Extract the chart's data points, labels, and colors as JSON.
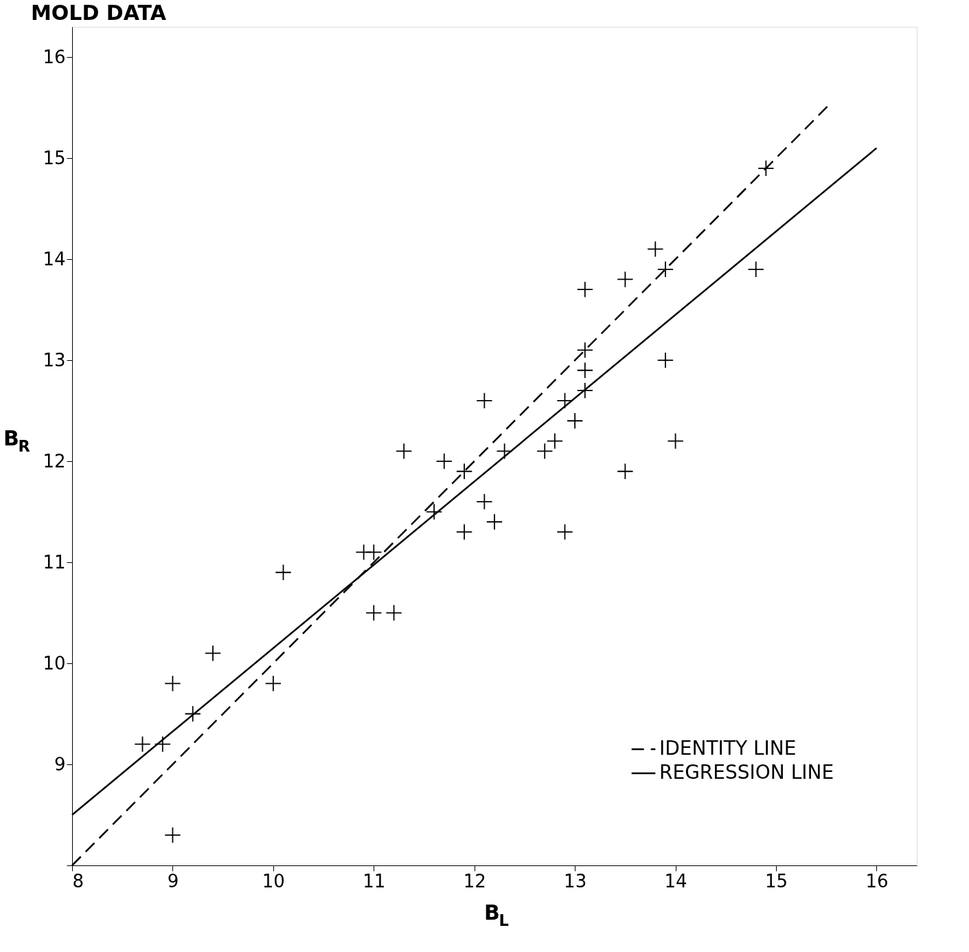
{
  "chart_data": {
    "type": "scatter",
    "title": "MOLD DATA",
    "xlabel": "B$_{L}$",
    "ylabel": "B$_{R}$",
    "xlim": [
      8,
      16.4
    ],
    "ylim": [
      8,
      16.3
    ],
    "xticks": [
      8,
      9,
      10,
      11,
      12,
      13,
      14,
      15,
      16
    ],
    "yticks": [
      {
        "value": 8,
        "label": null
      },
      9,
      10,
      11,
      12,
      13,
      14,
      15,
      16
    ],
    "grid": false,
    "legend": "bottom right",
    "series": [
      {
        "marker": "cross",
        "color": "#000000",
        "x": [
          14.9,
          13.8,
          13.9,
          14.8,
          13.5,
          13.1,
          13.1,
          13.1,
          13.9,
          13.1,
          12.9,
          12.1,
          13.0,
          12.8,
          14.0,
          12.7,
          12.3,
          11.3,
          11.7,
          11.9,
          13.5,
          12.1,
          11.6,
          12.2,
          11.9,
          12.9,
          10.9,
          11.0,
          10.1,
          11.0,
          11.2,
          9.4,
          9.0,
          10.0,
          9.2,
          8.7,
          8.9,
          9.0
        ],
        "values": [
          14.9,
          14.1,
          13.9,
          13.9,
          13.8,
          13.7,
          13.1,
          12.9,
          13.0,
          12.7,
          12.6,
          12.6,
          12.4,
          12.2,
          12.2,
          12.1,
          12.1,
          12.1,
          12.0,
          11.9,
          11.9,
          11.6,
          11.5,
          11.4,
          11.3,
          11.3,
          11.1,
          11.1,
          10.9,
          10.5,
          10.5,
          10.1,
          9.8,
          9.8,
          9.5,
          9.2,
          9.2,
          8.3
        ]
      },
      {
        "type": "line",
        "name": "IDENTITY LINE",
        "color": "#000000",
        "line_style": "dashed",
        "x": [
          8,
          15.55
        ],
        "values": [
          8,
          15.55
        ]
      },
      {
        "type": "line",
        "name": "REGRESSION LINE",
        "color": "#000000",
        "line_style": "solid",
        "x": [
          8,
          16
        ],
        "values": [
          8.5,
          15.1
        ]
      }
    ]
  }
}
